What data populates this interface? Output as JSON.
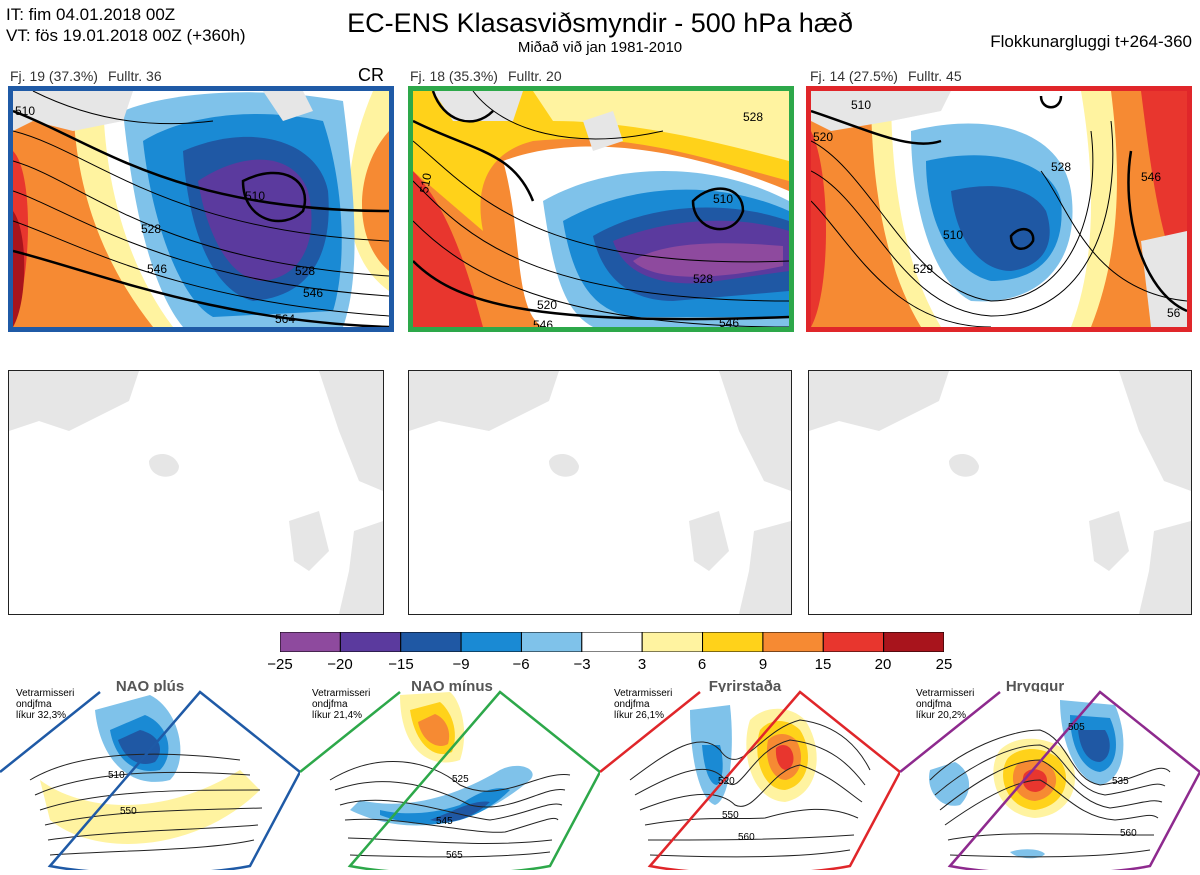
{
  "header": {
    "it_line": "IT: fim 04.01.2018 00Z",
    "vt_line": "VT: fös 19.01.2018 00Z  (+360h)",
    "title": "EC-ENS Klasasviðsmyndir - 500 hPa hæð",
    "subtitle": "Miðað við jan 1981-2010",
    "window": "Flokkunargluggi t+264-360"
  },
  "clusters": [
    {
      "fj": "Fj. 19 (37.3%)",
      "rep": "Fulltr. 36",
      "regime": "CR",
      "border_color": "#1f5aa6",
      "contour_labels": [
        "510",
        "528",
        "546",
        "546",
        "564",
        "510",
        "528"
      ]
    },
    {
      "fj": "Fj. 18 (35.3%)",
      "rep": "Fulltr. 20",
      "regime": "",
      "border_color": "#2da84a",
      "contour_labels": [
        "510",
        "510",
        "528",
        "528",
        "546",
        "546",
        "520"
      ]
    },
    {
      "fj": "Fj. 14 (27.5%)",
      "rep": "Fulltr. 45",
      "regime": "",
      "border_color": "#e0262a",
      "contour_labels": [
        "510",
        "520",
        "528",
        "546",
        "510",
        "529",
        "56"
      ]
    }
  ],
  "colorbar": {
    "ticks": [
      "−25",
      "−20",
      "−15",
      "−9",
      "−6",
      "−3",
      "3",
      "6",
      "9",
      "15",
      "20",
      "25"
    ],
    "colors": [
      "#8e4a9e",
      "#5b3a9e",
      "#1f58a4",
      "#1a8ad4",
      "#7fc2ea",
      "#ffffff",
      "#fff3a0",
      "#ffd21a",
      "#f68a33",
      "#e8362e",
      "#a8141c"
    ]
  },
  "regimes": [
    {
      "name": "NAO plús",
      "note": [
        "Vetrarmisseri",
        "ondjfma",
        "líkur 32,3%"
      ],
      "color": "#1f5aa6",
      "labels": [
        "510",
        "550"
      ]
    },
    {
      "name": "NAO mínus",
      "note": [
        "Vetrarmisseri",
        "ondjfma",
        "líkur 21,4%"
      ],
      "color": "#2da84a",
      "labels": [
        "525",
        "545",
        "565"
      ]
    },
    {
      "name": "Fyrirstaða",
      "note": [
        "Vetrarmisseri",
        "ondjfma",
        "líkur 26,1%"
      ],
      "color": "#e0262a",
      "labels": [
        "520",
        "550",
        "560"
      ]
    },
    {
      "name": "Hryggur",
      "note": [
        "Vetrarmisseri",
        "ondjfma",
        "líkur 20,2%"
      ],
      "color": "#8e2a8e",
      "labels": [
        "505",
        "535",
        "560"
      ]
    }
  ]
}
